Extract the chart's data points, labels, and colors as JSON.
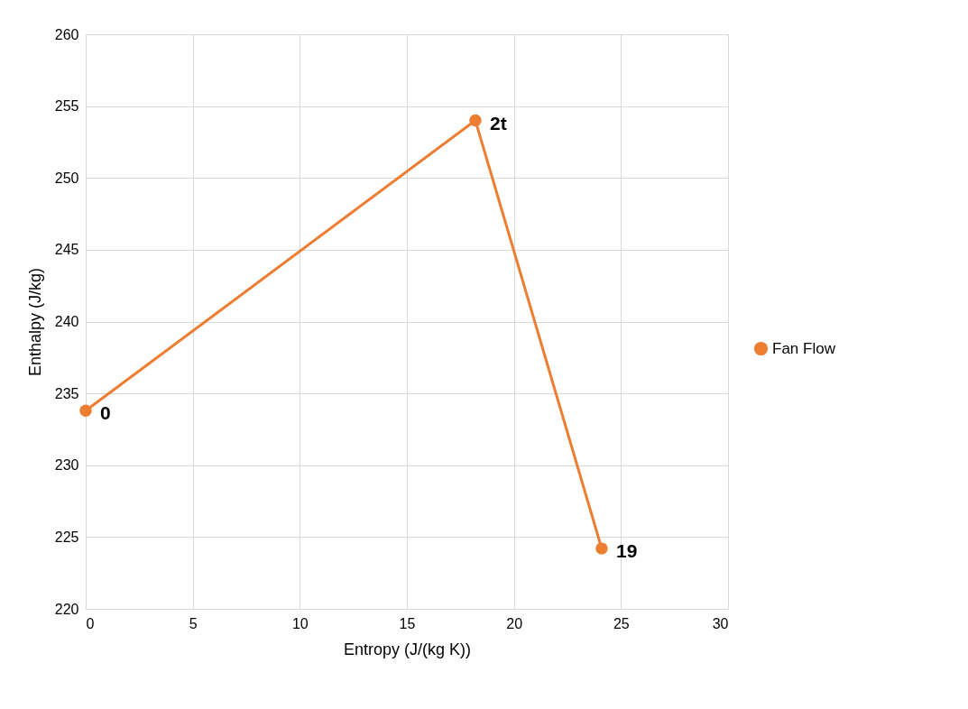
{
  "chart_data": {
    "type": "line",
    "xlabel": "Entropy (J/(kg K))",
    "ylabel": "Enthalpy (J/kg)",
    "x": [
      0,
      18.2,
      24.1
    ],
    "series": [
      {
        "name": "Fan Flow",
        "color": "#ed7d31",
        "values": [
          233.8,
          254.0,
          224.2
        ]
      }
    ],
    "annotations": [
      {
        "text": "0",
        "x": 0,
        "y": 233.8
      },
      {
        "text": "2t",
        "x": 18.2,
        "y": 254.0
      },
      {
        "text": "19",
        "x": 24.1,
        "y": 224.2
      }
    ],
    "xlim": [
      0,
      30
    ],
    "xticks": [
      0,
      5,
      10,
      15,
      20,
      25,
      30
    ],
    "ylim": [
      220,
      260
    ],
    "yticks": [
      220,
      225,
      230,
      235,
      240,
      245,
      250,
      255,
      260
    ],
    "grid": true,
    "legend": "right",
    "marker": "circle",
    "line_style": "solid"
  }
}
